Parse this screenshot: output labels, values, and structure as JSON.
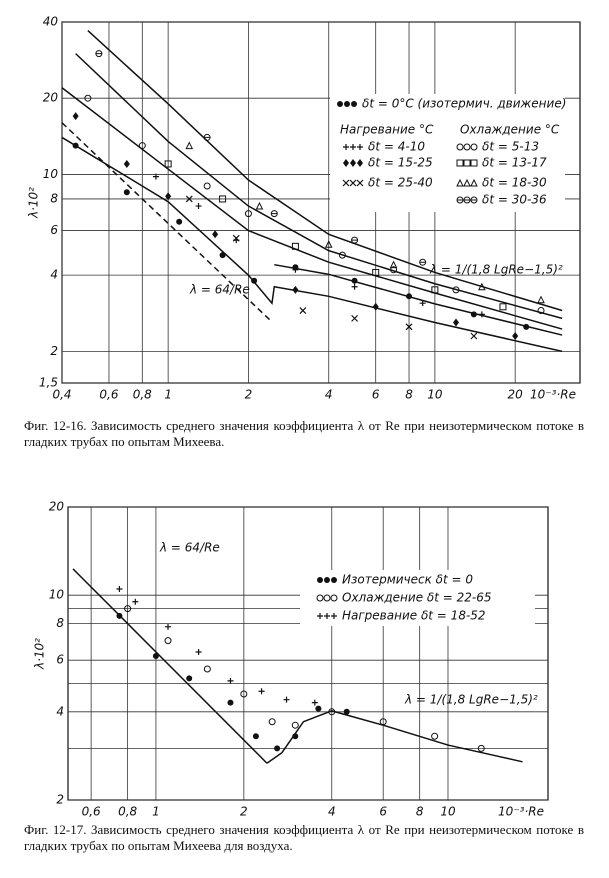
{
  "chart_data": [
    {
      "type": "line",
      "log_x": true,
      "log_y": true,
      "grid": true,
      "x_label": "10⁻³·Re",
      "y_label": "λ·10²",
      "caption": "Фиг. 12-16. Зависимость среднего значения коэффициента λ от Re при неизотермическом потоке в гладких трубах по опытам Михеева.",
      "xlim": [
        0.4,
        35
      ],
      "ylim": [
        1.5,
        40
      ],
      "xticks": [
        {
          "value": 0.4,
          "label": "0,4"
        },
        {
          "value": 0.6,
          "label": "0,6"
        },
        {
          "value": 0.8,
          "label": "0,8"
        },
        1,
        2,
        4,
        6,
        8,
        10,
        20
      ],
      "yticks": [
        {
          "value": 1.5,
          "label": "1,5"
        },
        2,
        4,
        6,
        8,
        10,
        20,
        40
      ],
      "legend_headers": [
        "Нагревание °С",
        "Охлаждение °С"
      ],
      "annotations": [
        "λ = 64/Re",
        "λ = 1/(1,8 LgRe−1,5)²"
      ],
      "series": [
        {
          "style": "line",
          "color": "#111",
          "x": [
            0.5,
            1,
            2,
            4,
            10,
            30
          ],
          "values": [
            37,
            19,
            9.5,
            5.8,
            4.1,
            2.9
          ]
        },
        {
          "style": "line",
          "color": "#111",
          "x": [
            0.45,
            1,
            2,
            4,
            10,
            30
          ],
          "values": [
            30,
            13.5,
            7.5,
            5,
            3.7,
            2.7
          ]
        },
        {
          "style": "line",
          "color": "#111",
          "x": [
            0.4,
            1,
            2,
            4,
            10,
            30
          ],
          "values": [
            22,
            10.5,
            6,
            4.5,
            3.4,
            2.45
          ]
        },
        {
          "style": "dashed",
          "color": "#111",
          "x": [
            0.4,
            2.4
          ],
          "values": [
            16,
            2.67
          ]
        },
        {
          "style": "line",
          "color": "#111",
          "x": [
            0.4,
            1,
            2,
            2.45,
            2.5,
            4,
            10,
            30
          ],
          "values": [
            14,
            7.8,
            4,
            3.1,
            3.6,
            3.3,
            2.6,
            2.0
          ]
        },
        {
          "style": "line",
          "color": "#111",
          "x": [
            2.5,
            4,
            10,
            30
          ],
          "values": [
            4.4,
            4.03,
            3.08,
            2.32
          ]
        },
        {
          "style": "scatter",
          "marker": "dot",
          "color": "#111",
          "name": "δt = 0°C (изотермич. движение)",
          "x": [
            0.45,
            0.7,
            1.1,
            1.6,
            2.1,
            3,
            5,
            8,
            14,
            22
          ],
          "values": [
            13,
            8.5,
            6.5,
            4.8,
            3.8,
            4.3,
            3.8,
            3.3,
            2.8,
            2.5
          ]
        },
        {
          "style": "scatter",
          "marker": "plus",
          "color": "#111",
          "name": "δt = 4-10",
          "x": [
            0.9,
            1.3,
            1.8,
            3,
            5,
            9,
            15
          ],
          "values": [
            9.8,
            7.5,
            5.5,
            4.2,
            3.6,
            3.1,
            2.8
          ]
        },
        {
          "style": "scatter",
          "marker": "diamond",
          "color": "#111",
          "name": "δt = 15-25",
          "x": [
            0.45,
            0.7,
            1,
            1.5,
            3,
            6,
            12,
            20
          ],
          "values": [
            17,
            11,
            8.2,
            5.8,
            3.5,
            3.0,
            2.6,
            2.3
          ]
        },
        {
          "style": "scatter",
          "marker": "cross",
          "color": "#111",
          "name": "δt = 25-40",
          "x": [
            1.2,
            1.8,
            3.2,
            5,
            8,
            14
          ],
          "values": [
            8,
            5.6,
            2.9,
            2.7,
            2.5,
            2.3
          ]
        },
        {
          "style": "scatter",
          "marker": "circle",
          "color": "#111",
          "name": "δt = 5-13",
          "x": [
            0.5,
            0.8,
            1.4,
            2,
            4.5,
            7,
            12,
            25
          ],
          "values": [
            20,
            13,
            9,
            7,
            4.8,
            4.2,
            3.5,
            2.9
          ]
        },
        {
          "style": "scatter",
          "marker": "square",
          "color": "#111",
          "name": "δt = 13-17",
          "x": [
            1,
            1.6,
            3,
            6,
            10,
            18
          ],
          "values": [
            11,
            8,
            5.2,
            4.1,
            3.5,
            3.0
          ]
        },
        {
          "style": "scatter",
          "marker": "triangle",
          "color": "#111",
          "name": "δt = 18-30",
          "x": [
            1.2,
            2.2,
            4,
            7,
            15,
            25
          ],
          "values": [
            13,
            7.5,
            5.3,
            4.4,
            3.6,
            3.2
          ]
        },
        {
          "style": "scatter",
          "marker": "halfcircle",
          "color": "#111",
          "name": "δt = 30-36",
          "x": [
            0.55,
            1.4,
            2.5,
            5,
            9
          ],
          "values": [
            30,
            14,
            7,
            5.5,
            4.5
          ]
        }
      ]
    },
    {
      "type": "line",
      "log_x": true,
      "log_y": true,
      "grid": true,
      "x_label": "10⁻³·Re",
      "y_label": "λ·10²",
      "caption": "Фиг. 12-17. Зависимость среднего значения коэффициента λ от Re при неизотермическом потоке в гладких трубах по опытам Михеева для воздуха.",
      "xlim": [
        0.5,
        22
      ],
      "ylim": [
        2,
        20
      ],
      "xticks": [
        {
          "value": 0.6,
          "label": "0,6"
        },
        {
          "value": 0.8,
          "label": "0,8"
        },
        1,
        2,
        4,
        6,
        8,
        10
      ],
      "yticks": [
        2,
        3,
        4,
        5,
        6,
        8,
        9,
        10,
        20
      ],
      "ytick_labels_shown": [
        2,
        4,
        6,
        8,
        10,
        20
      ],
      "annotations": [
        "λ = 64/Re",
        "λ = 1/(1,8 LgRe−1,5)²"
      ],
      "series": [
        {
          "style": "line",
          "color": "#111",
          "x": [
            0.52,
            2.4
          ],
          "values": [
            12.3,
            2.67
          ]
        },
        {
          "style": "line",
          "color": "#111",
          "x": [
            2.4,
            2.7,
            3.2,
            4,
            6,
            10,
            18
          ],
          "values": [
            2.67,
            2.9,
            3.7,
            4.03,
            3.6,
            3.08,
            2.7
          ]
        },
        {
          "style": "scatter",
          "marker": "dot",
          "color": "#111",
          "name": "Изотермическ δt = 0",
          "x": [
            0.75,
            1,
            1.3,
            1.8,
            2.2,
            2.6,
            3,
            3.6,
            4.5
          ],
          "values": [
            8.5,
            6.2,
            5.2,
            4.3,
            3.3,
            3.0,
            3.3,
            4.1,
            4.0
          ]
        },
        {
          "style": "scatter",
          "marker": "circle",
          "color": "#111",
          "name": "Охлаждение δt = 22-65",
          "x": [
            0.8,
            1.1,
            1.5,
            2,
            2.5,
            3,
            4,
            6,
            9,
            13
          ],
          "values": [
            9,
            7,
            5.6,
            4.6,
            3.7,
            3.6,
            4.0,
            3.7,
            3.3,
            3.0
          ]
        },
        {
          "style": "scatter",
          "marker": "plus",
          "color": "#111",
          "name": "Нагревание δt = 18-52",
          "x": [
            0.75,
            0.85,
            1.1,
            1.4,
            1.8,
            2.3,
            2.8,
            3.5
          ],
          "values": [
            10.5,
            9.5,
            7.8,
            6.4,
            5.1,
            4.7,
            4.4,
            4.3
          ]
        }
      ]
    }
  ]
}
